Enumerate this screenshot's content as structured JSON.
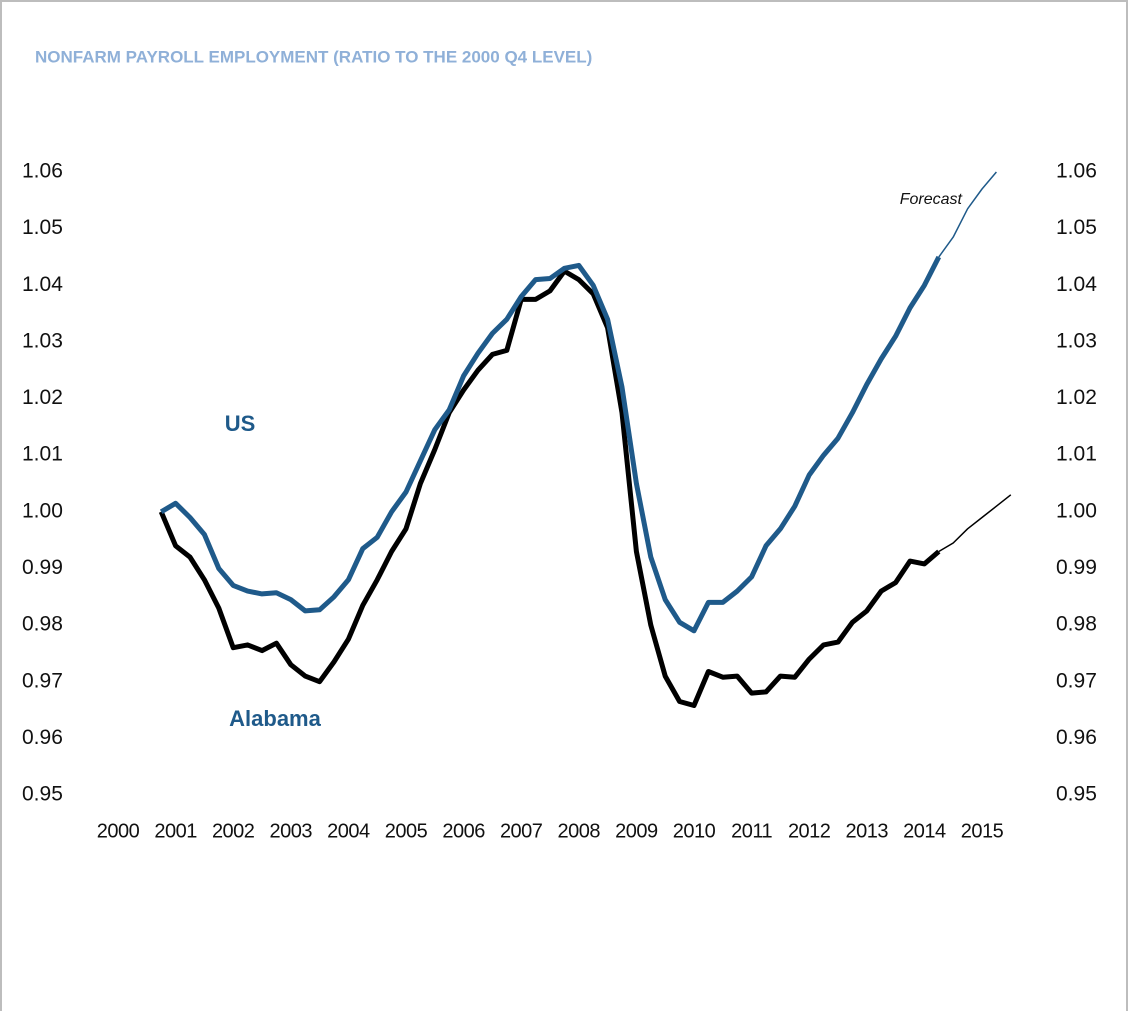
{
  "chart_data": {
    "type": "line",
    "title": "NONFARM PAYROLL EMPLOYMENT (RATIO TO THE 2000 Q4 LEVEL)",
    "title_color": "#8fb0d8",
    "label_color": "#1f5a8a",
    "annotations": [
      "Forecast"
    ],
    "categories": [
      "2000",
      null,
      null,
      null,
      "2001",
      null,
      null,
      null,
      "2002",
      null,
      null,
      null,
      "2003",
      null,
      null,
      null,
      "2004",
      null,
      null,
      null,
      "2005",
      null,
      null,
      null,
      "2006",
      null,
      null,
      null,
      "2007",
      null,
      null,
      null,
      "2008",
      null,
      null,
      null,
      "2009",
      null,
      null,
      null,
      "2010",
      null,
      null,
      null,
      "2011",
      null,
      null,
      null,
      "2012",
      null,
      null,
      null,
      "2013",
      null,
      null,
      null,
      "2014",
      null,
      null,
      null,
      "2015",
      null,
      null,
      null
    ],
    "series": [
      {
        "name": "US",
        "color": "#1f5a8a",
        "values": [
          null,
          null,
          null,
          1.0,
          1.0015,
          0.999,
          0.996,
          0.99,
          0.987,
          0.986,
          0.9855,
          0.9857,
          0.9845,
          0.9825,
          0.9827,
          0.985,
          0.988,
          0.9935,
          0.9955,
          1.0,
          1.0035,
          1.009,
          1.0145,
          1.018,
          1.024,
          1.028,
          1.0315,
          1.034,
          1.038,
          1.041,
          1.0412,
          1.043,
          1.0435,
          1.04,
          1.034,
          1.022,
          1.005,
          0.992,
          0.9845,
          0.9805,
          0.979,
          0.984,
          0.984,
          0.986,
          0.9885,
          0.994,
          0.997,
          1.001,
          1.0065,
          1.01,
          1.013,
          1.0175,
          1.0225,
          1.027,
          1.031,
          1.036,
          1.04,
          1.045,
          null,
          null,
          null,
          null,
          null,
          null
        ],
        "forecast": [
          null,
          null,
          null,
          null,
          null,
          null,
          null,
          null,
          null,
          null,
          null,
          null,
          null,
          null,
          null,
          null,
          null,
          null,
          null,
          null,
          null,
          null,
          null,
          null,
          null,
          null,
          null,
          null,
          null,
          null,
          null,
          null,
          null,
          null,
          null,
          null,
          null,
          null,
          null,
          null,
          null,
          null,
          null,
          null,
          null,
          null,
          null,
          null,
          null,
          null,
          null,
          null,
          null,
          null,
          null,
          null,
          null,
          1.045,
          1.0485,
          1.0535,
          1.057,
          1.06,
          null,
          null
        ]
      },
      {
        "name": "Alabama",
        "color": "#000000",
        "values": [
          null,
          null,
          null,
          1.0,
          0.994,
          0.992,
          0.988,
          0.983,
          0.976,
          0.9765,
          0.9755,
          0.9768,
          0.973,
          0.971,
          0.97,
          0.9735,
          0.9775,
          0.9835,
          0.988,
          0.993,
          0.997,
          1.005,
          1.011,
          1.0175,
          1.0215,
          1.025,
          1.0278,
          1.0285,
          1.0375,
          1.0375,
          1.039,
          1.0425,
          1.041,
          1.0385,
          1.0325,
          1.0175,
          0.993,
          0.98,
          0.971,
          0.9665,
          0.9658,
          0.9718,
          0.9708,
          0.971,
          0.968,
          0.9682,
          0.971,
          0.9708,
          0.974,
          0.9765,
          0.977,
          0.9805,
          0.9825,
          0.986,
          0.9875,
          0.9913,
          0.9908,
          0.993,
          null,
          null,
          null,
          null,
          null,
          null
        ],
        "forecast": [
          null,
          null,
          null,
          null,
          null,
          null,
          null,
          null,
          null,
          null,
          null,
          null,
          null,
          null,
          null,
          null,
          null,
          null,
          null,
          null,
          null,
          null,
          null,
          null,
          null,
          null,
          null,
          null,
          null,
          null,
          null,
          null,
          null,
          null,
          null,
          null,
          null,
          null,
          null,
          null,
          null,
          null,
          null,
          null,
          null,
          null,
          null,
          null,
          null,
          null,
          null,
          null,
          null,
          null,
          null,
          null,
          null,
          0.993,
          0.9945,
          0.997,
          0.999,
          1.001,
          1.003,
          null
        ]
      }
    ],
    "ylim": [
      0.95,
      1.06
    ],
    "yticks": [
      0.95,
      0.96,
      0.97,
      0.98,
      0.99,
      {
        "value": 1.0,
        "label": "1.00"
      },
      1.01,
      1.02,
      1.03,
      1.04,
      1.05,
      1.06
    ],
    "y2lim": [
      0.95,
      1.06
    ],
    "y2ticks": [
      0.95,
      0.96,
      0.97,
      0.98,
      0.99,
      {
        "value": 1.0,
        "label": "1.00"
      },
      1.01,
      1.02,
      1.03,
      1.04,
      1.05,
      1.06
    ]
  }
}
